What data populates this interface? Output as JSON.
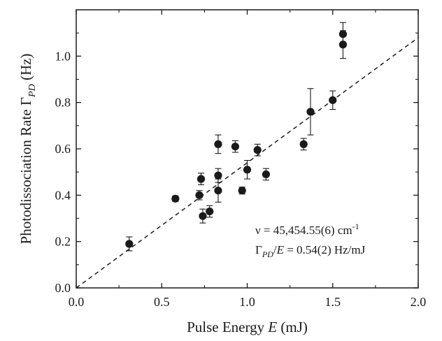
{
  "chart_data": {
    "type": "scatter",
    "xlabel": {
      "text": "Pulse Energy ",
      "var": "E",
      "unit": " (mJ)"
    },
    "ylabel": {
      "text": "Photodissociation Rate  ",
      "sym": "Γ",
      "sub": "PD",
      "unit": " (Hz)"
    },
    "xlim": [
      0.0,
      2.0
    ],
    "ylim": [
      0.0,
      1.2
    ],
    "x_ticks": [
      0.0,
      0.5,
      1.0,
      1.5,
      2.0
    ],
    "x_tick_labels": [
      "0.0",
      "0.5",
      "1.0",
      "1.5",
      "2.0"
    ],
    "y_ticks": [
      0.0,
      0.2,
      0.4,
      0.6,
      0.8,
      1.0
    ],
    "y_tick_labels": [
      "0.0",
      "0.2",
      "0.4",
      "0.6",
      "0.8",
      "1.0"
    ],
    "points": [
      {
        "x": 0.31,
        "y": 0.19,
        "err": 0.03
      },
      {
        "x": 0.58,
        "y": 0.385,
        "err": 0.012
      },
      {
        "x": 0.72,
        "y": 0.4,
        "err": 0.02
      },
      {
        "x": 0.73,
        "y": 0.47,
        "err": 0.025
      },
      {
        "x": 0.74,
        "y": 0.31,
        "err": 0.03
      },
      {
        "x": 0.78,
        "y": 0.33,
        "err": 0.025
      },
      {
        "x": 0.83,
        "y": 0.62,
        "err": 0.04
      },
      {
        "x": 0.83,
        "y": 0.485,
        "err": 0.03
      },
      {
        "x": 0.83,
        "y": 0.42,
        "err": 0.05
      },
      {
        "x": 0.93,
        "y": 0.61,
        "err": 0.025
      },
      {
        "x": 0.97,
        "y": 0.42,
        "err": 0.015
      },
      {
        "x": 1.0,
        "y": 0.51,
        "err": 0.04
      },
      {
        "x": 1.06,
        "y": 0.595,
        "err": 0.025
      },
      {
        "x": 1.11,
        "y": 0.49,
        "err": 0.025
      },
      {
        "x": 1.33,
        "y": 0.62,
        "err": 0.025
      },
      {
        "x": 1.37,
        "y": 0.76,
        "err": 0.1
      },
      {
        "x": 1.5,
        "y": 0.81,
        "err": 0.04
      },
      {
        "x": 1.56,
        "y": 1.095,
        "err": 0.05
      },
      {
        "x": 1.56,
        "y": 1.05,
        "err": 0.06
      }
    ],
    "fit_line": {
      "style": "dashed",
      "x": [
        0.0,
        2.0
      ],
      "y": [
        0.0,
        1.08
      ]
    },
    "annotations": [
      {
        "pre": "ν = 45,454.55(6) cm",
        "sup": "-1"
      },
      {
        "sym": "Γ",
        "sub": "PD",
        "mid": "/",
        "var": "E",
        "post": " = 0.54(2) Hz/mJ"
      }
    ],
    "grid": false,
    "legend": "none"
  }
}
